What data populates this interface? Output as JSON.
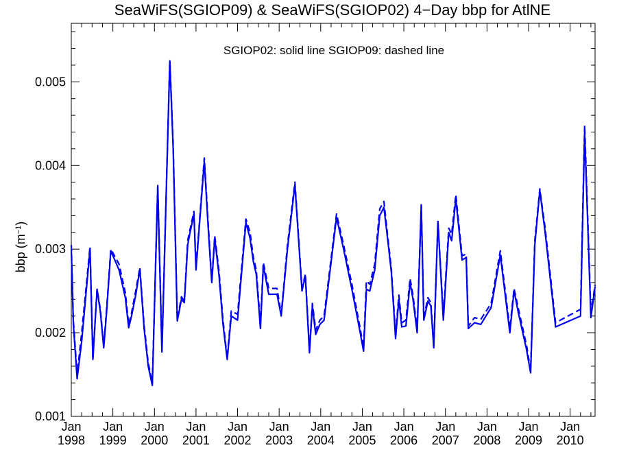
{
  "chart_data": {
    "type": "line",
    "title": "SeaWiFS(SGIOP09) & SeaWiFS(SGIOP02) 4−Day bbp for AtlNE",
    "legend_text": "SGIOP02: solid line   SGIOP09: dashed line",
    "ylabel_main": "bbp (m",
    "ylabel_sup": "−1",
    "ylabel_close": ")",
    "xlim": [
      1998.0,
      2010.6
    ],
    "ylim": [
      0.001,
      0.0057
    ],
    "yticks": [
      {
        "value": 0.001,
        "label": "0.001"
      },
      {
        "value": 0.002,
        "label": "0.002"
      },
      {
        "value": 0.003,
        "label": "0.003"
      },
      {
        "value": 0.004,
        "label": "0.004"
      },
      {
        "value": 0.005,
        "label": "0.005"
      }
    ],
    "xticks": [
      {
        "value": 1998,
        "month": "Jan",
        "year": "1998"
      },
      {
        "value": 1999,
        "month": "Jan",
        "year": "1999"
      },
      {
        "value": 2000,
        "month": "Jan",
        "year": "2000"
      },
      {
        "value": 2001,
        "month": "Jan",
        "year": "2001"
      },
      {
        "value": 2002,
        "month": "Jan",
        "year": "2002"
      },
      {
        "value": 2003,
        "month": "Jan",
        "year": "2003"
      },
      {
        "value": 2004,
        "month": "Jan",
        "year": "2004"
      },
      {
        "value": 2005,
        "month": "Jan",
        "year": "2005"
      },
      {
        "value": 2006,
        "month": "Jan",
        "year": "2006"
      },
      {
        "value": 2007,
        "month": "Jan",
        "year": "2007"
      },
      {
        "value": 2008,
        "month": "Jan",
        "year": "2008"
      },
      {
        "value": 2009,
        "month": "Jan",
        "year": "2009"
      },
      {
        "value": 2010,
        "month": "Jan",
        "year": "2010"
      }
    ],
    "series": [
      {
        "name": "SGIOP02",
        "style": "solid",
        "color": "#0000ee",
        "points": [
          [
            1998.0,
            0.003
          ],
          [
            1998.05,
            0.0021
          ],
          [
            1998.14,
            0.00145
          ],
          [
            1998.25,
            0.0019
          ],
          [
            1998.45,
            0.003
          ],
          [
            1998.52,
            0.00168
          ],
          [
            1998.62,
            0.00252
          ],
          [
            1998.7,
            0.00225
          ],
          [
            1998.78,
            0.00182
          ],
          [
            1998.85,
            0.00225
          ],
          [
            1998.95,
            0.00298
          ],
          [
            1999.15,
            0.00275
          ],
          [
            1999.3,
            0.00242
          ],
          [
            1999.38,
            0.00206
          ],
          [
            1999.45,
            0.0022
          ],
          [
            1999.55,
            0.00245
          ],
          [
            1999.65,
            0.00276
          ],
          [
            1999.75,
            0.00206
          ],
          [
            1999.85,
            0.0016
          ],
          [
            1999.95,
            0.00137
          ],
          [
            2000.08,
            0.00375
          ],
          [
            2000.18,
            0.00177
          ],
          [
            2000.37,
            0.00525
          ],
          [
            2000.45,
            0.0042
          ],
          [
            2000.55,
            0.00214
          ],
          [
            2000.65,
            0.0024
          ],
          [
            2000.72,
            0.00236
          ],
          [
            2000.8,
            0.00305
          ],
          [
            2000.85,
            0.00318
          ],
          [
            2000.95,
            0.00342
          ],
          [
            2001.0,
            0.00275
          ],
          [
            2001.2,
            0.00405
          ],
          [
            2001.3,
            0.0032
          ],
          [
            2001.38,
            0.0026
          ],
          [
            2001.45,
            0.00313
          ],
          [
            2001.55,
            0.0027
          ],
          [
            2001.65,
            0.0021
          ],
          [
            2001.75,
            0.00168
          ],
          [
            2001.85,
            0.0022
          ],
          [
            2002.0,
            0.00215
          ],
          [
            2002.2,
            0.00332
          ],
          [
            2002.3,
            0.00313
          ],
          [
            2002.38,
            0.00285
          ],
          [
            2002.45,
            0.0027
          ],
          [
            2002.55,
            0.00205
          ],
          [
            2002.62,
            0.0028
          ],
          [
            2002.75,
            0.00246
          ],
          [
            2002.95,
            0.00246
          ],
          [
            2003.05,
            0.0022
          ],
          [
            2003.2,
            0.003
          ],
          [
            2003.38,
            0.00377
          ],
          [
            2003.55,
            0.0025
          ],
          [
            2003.63,
            0.00268
          ],
          [
            2003.73,
            0.00176
          ],
          [
            2003.8,
            0.00232
          ],
          [
            2003.88,
            0.00198
          ],
          [
            2003.98,
            0.0021
          ],
          [
            2004.08,
            0.00215
          ],
          [
            2004.38,
            0.00338
          ],
          [
            2004.55,
            0.003
          ],
          [
            2004.75,
            0.00252
          ],
          [
            2004.95,
            0.002
          ],
          [
            2005.03,
            0.00178
          ],
          [
            2005.1,
            0.00252
          ],
          [
            2005.18,
            0.0025
          ],
          [
            2005.3,
            0.00275
          ],
          [
            2005.42,
            0.0034
          ],
          [
            2005.52,
            0.0035
          ],
          [
            2005.62,
            0.00308
          ],
          [
            2005.7,
            0.00272
          ],
          [
            2005.8,
            0.00193
          ],
          [
            2005.88,
            0.0024
          ],
          [
            2005.95,
            0.00207
          ],
          [
            2006.05,
            0.00208
          ],
          [
            2006.15,
            0.0026
          ],
          [
            2006.22,
            0.0024
          ],
          [
            2006.32,
            0.002
          ],
          [
            2006.42,
            0.00353
          ],
          [
            2006.48,
            0.00215
          ],
          [
            2006.58,
            0.00238
          ],
          [
            2006.65,
            0.00232
          ],
          [
            2006.72,
            0.00182
          ],
          [
            2006.82,
            0.00333
          ],
          [
            2006.95,
            0.00215
          ],
          [
            2007.08,
            0.0032
          ],
          [
            2007.15,
            0.0031
          ],
          [
            2007.25,
            0.0036
          ],
          [
            2007.4,
            0.00287
          ],
          [
            2007.5,
            0.0029
          ],
          [
            2007.55,
            0.00205
          ],
          [
            2007.7,
            0.00212
          ],
          [
            2007.85,
            0.0021
          ],
          [
            2008.1,
            0.0023
          ],
          [
            2008.32,
            0.00293
          ],
          [
            2008.55,
            0.002
          ],
          [
            2008.65,
            0.0025
          ],
          [
            2008.75,
            0.00225
          ],
          [
            2008.95,
            0.0018
          ],
          [
            2009.05,
            0.00152
          ],
          [
            2009.15,
            0.00305
          ],
          [
            2009.27,
            0.0037
          ],
          [
            2009.4,
            0.0032
          ],
          [
            2009.65,
            0.00207
          ],
          [
            2010.25,
            0.0022
          ],
          [
            2010.35,
            0.0044
          ],
          [
            2010.5,
            0.00218
          ],
          [
            2010.6,
            0.00255
          ]
        ]
      },
      {
        "name": "SGIOP09",
        "style": "dashed",
        "color": "#0000ee",
        "points": [
          [
            1998.0,
            0.00305
          ],
          [
            1998.05,
            0.00215
          ],
          [
            1998.14,
            0.0015
          ],
          [
            1998.25,
            0.002
          ],
          [
            1998.45,
            0.00303
          ],
          [
            1998.52,
            0.0017
          ],
          [
            1998.62,
            0.00252
          ],
          [
            1998.7,
            0.00228
          ],
          [
            1998.78,
            0.00184
          ],
          [
            1998.85,
            0.00228
          ],
          [
            1998.95,
            0.003
          ],
          [
            1999.15,
            0.00282
          ],
          [
            1999.3,
            0.00248
          ],
          [
            1999.38,
            0.0021
          ],
          [
            1999.45,
            0.00224
          ],
          [
            1999.55,
            0.0025
          ],
          [
            1999.65,
            0.00278
          ],
          [
            1999.75,
            0.0021
          ],
          [
            1999.85,
            0.00164
          ],
          [
            1999.95,
            0.0014
          ],
          [
            2000.08,
            0.00376
          ],
          [
            2000.18,
            0.0018
          ],
          [
            2000.37,
            0.00526
          ],
          [
            2000.45,
            0.00425
          ],
          [
            2000.55,
            0.00216
          ],
          [
            2000.65,
            0.00243
          ],
          [
            2000.72,
            0.00238
          ],
          [
            2000.8,
            0.0031
          ],
          [
            2000.85,
            0.00322
          ],
          [
            2000.95,
            0.00345
          ],
          [
            2001.0,
            0.00278
          ],
          [
            2001.2,
            0.00409
          ],
          [
            2001.3,
            0.00325
          ],
          [
            2001.38,
            0.00262
          ],
          [
            2001.45,
            0.00316
          ],
          [
            2001.55,
            0.00275
          ],
          [
            2001.65,
            0.00215
          ],
          [
            2001.75,
            0.0017
          ],
          [
            2001.85,
            0.00226
          ],
          [
            2002.0,
            0.00222
          ],
          [
            2002.2,
            0.00336
          ],
          [
            2002.3,
            0.0032
          ],
          [
            2002.38,
            0.0029
          ],
          [
            2002.45,
            0.00275
          ],
          [
            2002.55,
            0.0021
          ],
          [
            2002.62,
            0.00284
          ],
          [
            2002.75,
            0.00253
          ],
          [
            2002.95,
            0.00253
          ],
          [
            2003.05,
            0.00222
          ],
          [
            2003.2,
            0.00305
          ],
          [
            2003.38,
            0.0038
          ],
          [
            2003.55,
            0.00253
          ],
          [
            2003.63,
            0.0027
          ],
          [
            2003.73,
            0.0018
          ],
          [
            2003.8,
            0.00235
          ],
          [
            2003.88,
            0.00203
          ],
          [
            2003.98,
            0.00215
          ],
          [
            2004.08,
            0.0022
          ],
          [
            2004.38,
            0.00342
          ],
          [
            2004.55,
            0.00305
          ],
          [
            2004.75,
            0.00258
          ],
          [
            2004.95,
            0.00205
          ],
          [
            2005.03,
            0.00182
          ],
          [
            2005.1,
            0.00262
          ],
          [
            2005.18,
            0.00258
          ],
          [
            2005.3,
            0.00282
          ],
          [
            2005.42,
            0.00348
          ],
          [
            2005.52,
            0.00357
          ],
          [
            2005.62,
            0.00312
          ],
          [
            2005.7,
            0.00276
          ],
          [
            2005.8,
            0.00198
          ],
          [
            2005.88,
            0.00245
          ],
          [
            2005.95,
            0.00212
          ],
          [
            2006.05,
            0.00215
          ],
          [
            2006.15,
            0.00265
          ],
          [
            2006.22,
            0.00245
          ],
          [
            2006.32,
            0.00204
          ],
          [
            2006.42,
            0.00353
          ],
          [
            2006.48,
            0.00218
          ],
          [
            2006.58,
            0.00242
          ],
          [
            2006.65,
            0.00236
          ],
          [
            2006.72,
            0.00185
          ],
          [
            2006.82,
            0.00333
          ],
          [
            2006.95,
            0.0022
          ],
          [
            2007.08,
            0.00325
          ],
          [
            2007.15,
            0.00318
          ],
          [
            2007.25,
            0.00365
          ],
          [
            2007.4,
            0.00292
          ],
          [
            2007.5,
            0.00294
          ],
          [
            2007.55,
            0.00208
          ],
          [
            2007.7,
            0.00218
          ],
          [
            2007.85,
            0.00216
          ],
          [
            2008.1,
            0.00235
          ],
          [
            2008.32,
            0.00298
          ],
          [
            2008.55,
            0.00205
          ],
          [
            2008.65,
            0.00253
          ],
          [
            2008.75,
            0.0023
          ],
          [
            2008.95,
            0.00185
          ],
          [
            2009.05,
            0.00155
          ],
          [
            2009.15,
            0.0031
          ],
          [
            2009.27,
            0.00372
          ],
          [
            2009.4,
            0.00325
          ],
          [
            2009.65,
            0.00212
          ],
          [
            2010.25,
            0.00228
          ],
          [
            2010.35,
            0.00448
          ],
          [
            2010.5,
            0.00224
          ],
          [
            2010.6,
            0.00257
          ]
        ]
      }
    ]
  }
}
